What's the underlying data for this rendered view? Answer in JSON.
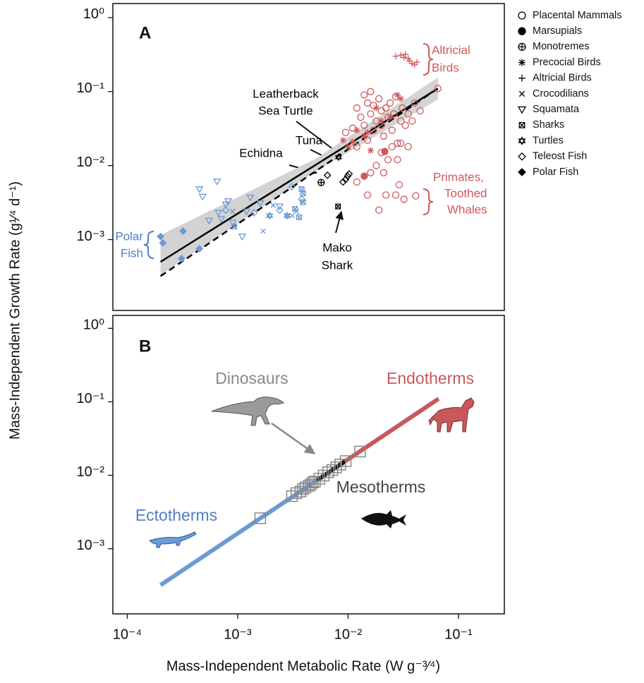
{
  "chart_data": [
    {
      "type": "scatter",
      "panel_label": "A",
      "xscale": "log",
      "yscale": "log",
      "xlim": [
        7.4e-05,
        0.26
      ],
      "ylim": [
        0.00011,
        1.55
      ],
      "yticks": [
        {
          "value": 1,
          "label": "10⁰"
        },
        {
          "value": 0.1,
          "label": "10⁻¹"
        },
        {
          "value": 0.01,
          "label": "10⁻²"
        },
        {
          "value": 0.001,
          "label": "10⁻³"
        }
      ],
      "ylabel": "Mass-Independent Growth Rate (g¹⁄⁴ d⁻¹)",
      "legend_color": "#000000",
      "band": {
        "x": [
          0.0002,
          0.005,
          0.065
        ],
        "lower": [
          0.00033,
          0.0082,
          0.078
        ],
        "upper": [
          0.00115,
          0.0122,
          0.155
        ],
        "color": "#d3d3d3"
      },
      "lines": [
        {
          "x": [
            0.0002,
            0.065
          ],
          "values": [
            0.0005,
            0.11
          ],
          "color": "#000000",
          "dash": false
        },
        {
          "x": [
            0.0002,
            0.065
          ],
          "values": [
            0.00032,
            0.11
          ],
          "color": "#000000",
          "dash": true
        }
      ],
      "series": [
        {
          "name": "Placental Mammals",
          "marker": "circle-open",
          "color": "#d0585a",
          "x": [
            0.0095,
            0.011,
            0.012,
            0.013,
            0.014,
            0.014,
            0.015,
            0.016,
            0.016,
            0.017,
            0.017,
            0.018,
            0.019,
            0.02,
            0.02,
            0.021,
            0.022,
            0.023,
            0.024,
            0.025,
            0.026,
            0.027,
            0.028,
            0.03,
            0.031,
            0.033,
            0.035,
            0.038,
            0.04,
            0.045,
            0.065,
            0.012,
            0.015,
            0.02,
            0.023,
            0.018,
            0.025,
            0.03,
            0.035,
            0.028,
            0.016,
            0.021,
            0.015,
            0.019,
            0.022,
            0.027,
            0.029,
            0.032,
            0.041,
            0.012
          ],
          "values": [
            0.028,
            0.032,
            0.06,
            0.045,
            0.035,
            0.09,
            0.07,
            0.05,
            0.1,
            0.03,
            0.065,
            0.04,
            0.08,
            0.055,
            0.035,
            0.025,
            0.06,
            0.045,
            0.07,
            0.03,
            0.05,
            0.085,
            0.02,
            0.04,
            0.06,
            0.035,
            0.05,
            0.04,
            0.07,
            0.055,
            0.11,
            0.018,
            0.022,
            0.015,
            0.012,
            0.01,
            0.018,
            0.02,
            0.018,
            0.012,
            0.008,
            0.008,
            0.004,
            0.0025,
            0.004,
            0.004,
            0.0055,
            0.0035,
            0.0039,
            0.006
          ]
        },
        {
          "name": "Marsupials",
          "marker": "circle",
          "color": "#d0585a",
          "x": [
            0.014,
            0.0215
          ],
          "values": [
            0.0072,
            0.0155
          ]
        },
        {
          "name": "Monotremes",
          "marker": "circle-plus",
          "color": "#000000",
          "x": [
            0.0057
          ],
          "values": [
            0.0059
          ]
        },
        {
          "name": "Precocial Birds",
          "marker": "asterisk",
          "color": "#d0585a",
          "x": [
            0.009,
            0.01,
            0.011,
            0.012,
            0.014,
            0.015,
            0.018,
            0.02,
            0.024,
            0.028,
            0.03,
            0.016
          ],
          "values": [
            0.022,
            0.018,
            0.021,
            0.03,
            0.025,
            0.028,
            0.06,
            0.04,
            0.045,
            0.09,
            0.08,
            0.016
          ]
        },
        {
          "name": "Altricial Birds",
          "marker": "plus",
          "color": "#d0585a",
          "x": [
            0.027,
            0.03,
            0.032,
            0.033,
            0.035,
            0.036,
            0.038,
            0.04,
            0.042
          ],
          "values": [
            0.3,
            0.31,
            0.29,
            0.32,
            0.28,
            0.26,
            0.24,
            0.23,
            0.25
          ]
        },
        {
          "name": "Crocodilians",
          "marker": "cross",
          "color": "#6a9bd4",
          "x": [
            0.0009,
            0.0019,
            0.0021,
            0.0028,
            0.0031,
            0.0017,
            0.0034
          ],
          "values": [
            0.0024,
            0.0021,
            0.0029,
            0.0021,
            0.0021,
            0.0013,
            0.0024
          ]
        },
        {
          "name": "Squamata",
          "marker": "triangle-down-open",
          "color": "#6a9bd4",
          "x": [
            0.00045,
            0.00048,
            0.00065,
            0.00067,
            0.00071,
            0.00078,
            0.00082,
            0.0009,
            0.0012,
            0.0013,
            0.0016,
            0.0024,
            0.0011,
            0.00055
          ],
          "values": [
            0.0048,
            0.0038,
            0.0061,
            0.0023,
            0.0019,
            0.003,
            0.0033,
            0.0017,
            0.0024,
            0.0037,
            0.0031,
            0.0028,
            0.0011,
            0.0018
          ]
        },
        {
          "name": "Sharks",
          "marker": "square-x",
          "color": "#6a9bd4",
          "x": [
            0.0038,
            0.0039,
            0.0039,
            0.0033,
            0.0036,
            0.00093,
            0.0081
          ],
          "values": [
            0.0048,
            0.0042,
            0.0032,
            0.0026,
            0.002,
            0.0015,
            0.0028
          ],
          "point_colors": [
            "#6a9bd4",
            "#6a9bd4",
            "#6a9bd4",
            "#6a9bd4",
            "#6a9bd4",
            "#6a9bd4",
            "#000000"
          ]
        },
        {
          "name": "Turtles",
          "marker": "hexagram",
          "color": "#6a9bd4",
          "x": [
            0.00195,
            0.0028,
            0.0082
          ],
          "values": [
            0.0021,
            0.0021,
            0.013
          ],
          "point_colors": [
            "#6a9bd4",
            "#6a9bd4",
            "#000000"
          ]
        },
        {
          "name": "Teleost Fish",
          "marker": "diamond-open",
          "color": "#6a9bd4",
          "x": [
            0.00078,
            0.0014,
            0.0024,
            0.0038,
            0.0031,
            0.0065,
            0.0095,
            0.0099,
            0.0102,
            0.009
          ],
          "values": [
            0.0025,
            0.0023,
            0.0025,
            0.0035,
            0.0052,
            0.0074,
            0.0065,
            0.0072,
            0.0077,
            0.006
          ],
          "point_colors": [
            "#6a9bd4",
            "#6a9bd4",
            "#6a9bd4",
            "#6a9bd4",
            "#6a9bd4",
            "#000000",
            "#000000",
            "#000000",
            "#000000",
            "#000000"
          ]
        },
        {
          "name": "Polar Fish",
          "marker": "diamond",
          "color": "#6a9bd4",
          "x": [
            0.0002,
            0.00021,
            0.00032,
            0.00031,
            0.00045
          ],
          "values": [
            0.0011,
            0.0009,
            0.0013,
            0.00055,
            0.00075
          ]
        }
      ],
      "annotations": [
        {
          "lines": [
            "Altricial",
            "Birds"
          ],
          "color": "#d0585a"
        },
        {
          "lines": [
            "Primates,",
            "Toothed",
            "Whales"
          ],
          "color": "#d0585a"
        },
        {
          "lines": [
            "Polar",
            "Fish"
          ],
          "color": "#4f7fc4"
        },
        {
          "lines": [
            "Leatherback",
            "Sea Turtle"
          ],
          "color": "#000000"
        },
        {
          "lines": [
            "Tuna"
          ],
          "color": "#000000"
        },
        {
          "lines": [
            "Echidna"
          ],
          "color": "#000000"
        },
        {
          "lines": [
            "Mako",
            "Shark"
          ],
          "color": "#000000"
        }
      ]
    },
    {
      "type": "line",
      "panel_label": "B",
      "xscale": "log",
      "yscale": "log",
      "xlim": [
        7.4e-05,
        0.26
      ],
      "ylim": [
        0.00013,
        1.5
      ],
      "xticks": [
        {
          "value": 0.0001,
          "label": "10⁻⁴"
        },
        {
          "value": 0.001,
          "label": "10⁻³"
        },
        {
          "value": 0.01,
          "label": "10⁻²"
        },
        {
          "value": 0.1,
          "label": "10⁻¹"
        }
      ],
      "yticks": [
        {
          "value": 1,
          "label": "10⁰"
        },
        {
          "value": 0.1,
          "label": "10⁻¹"
        },
        {
          "value": 0.01,
          "label": "10⁻²"
        },
        {
          "value": 0.001,
          "label": "10⁻³"
        }
      ],
      "xlabel": "Mass-Independent Metabolic Rate  (W g⁻³⁄⁴)",
      "series": [
        {
          "name": "Ectotherms",
          "color": "#6a9bd4",
          "label_color": "#4f7fc4",
          "x": [
            0.0002,
            0.0052
          ],
          "values": [
            0.00032,
            0.0085
          ]
        },
        {
          "name": "Mesotherms",
          "color": "#111111",
          "label_color": "#444444",
          "x": [
            0.0052,
            0.0094
          ],
          "values": [
            0.0085,
            0.0155
          ]
        },
        {
          "name": "Endotherms",
          "color": "#c8585a",
          "label_color": "#c8585a",
          "x": [
            0.0094,
            0.066
          ],
          "values": [
            0.0155,
            0.11
          ]
        },
        {
          "name": "Dinosaurs",
          "marker": "square-open",
          "color": "#888888",
          "label_color": "#888888",
          "x": [
            0.0016,
            0.0031,
            0.0034,
            0.0037,
            0.0039,
            0.0041,
            0.0044,
            0.0046,
            0.0048,
            0.005,
            0.0055,
            0.006,
            0.0066,
            0.0072,
            0.0078,
            0.0085,
            0.0095,
            0.0128
          ],
          "values": [
            0.0026,
            0.0052,
            0.0057,
            0.006,
            0.0065,
            0.0068,
            0.0072,
            0.0075,
            0.008,
            0.0082,
            0.009,
            0.0099,
            0.011,
            0.0118,
            0.0128,
            0.014,
            0.0156,
            0.021
          ]
        }
      ]
    }
  ]
}
